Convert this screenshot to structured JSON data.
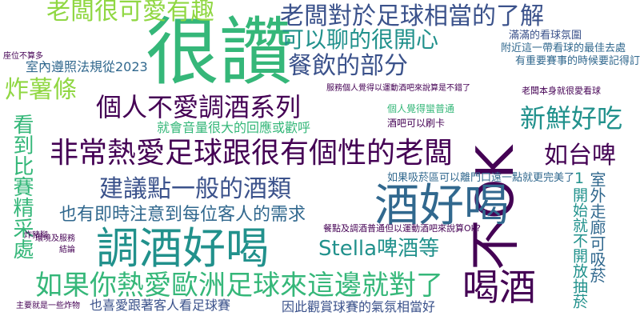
{
  "palette": {
    "dark_purple": "#440154",
    "indigo": "#3b528b",
    "blue": "#31688e",
    "teal": "#21918c",
    "green": "#35b779",
    "yellow_green": "#90d743",
    "background": "#ffffff"
  },
  "words": [
    "很讚",
    "不OK",
    "酒好喝",
    "調酒好喝",
    "喝酒",
    "非常熱愛足球跟很有個性的老闆",
    "如果你熱愛歐洲足球來這邊就對了",
    "老闆很可愛有趣",
    "老闆對於足球相當的了解",
    "可以聊的很開心",
    "餐飲的部分",
    "個人不愛調酒系列",
    "新鮮好吃",
    "如台啤",
    "建議點一般的酒類",
    "也有即時注意到每位客人的需求",
    "Stella啤酒等",
    "炸薯條",
    "室內遵照法規從2023",
    "就會音量很大的回應或歡呼",
    "看到比賽精采處",
    "也喜愛跟著客人看足球賽",
    "因此觀賞球賽的氣氛相當好",
    "1開始就不開放抽菸",
    "室外走廊可吸菸",
    "滿滿的看球氛圍",
    "附近這一帶看球的最佳去處",
    "有重要賽事的時候要記得訂位",
    "如果吸菸區可以離門口遠一點就更完美了",
    "酒吧可以刷卡",
    "個人覺得蠻普通",
    "老闆本身就很愛看球",
    "服務個人覺得以運動酒吧來說算是不錯了",
    "餐點及調酒普通但以運動酒吧來說算Ok?",
    "座位不算多",
    "環境及服務",
    "結論",
    "主要就是一些炸物",
    "炸豬腳"
  ]
}
